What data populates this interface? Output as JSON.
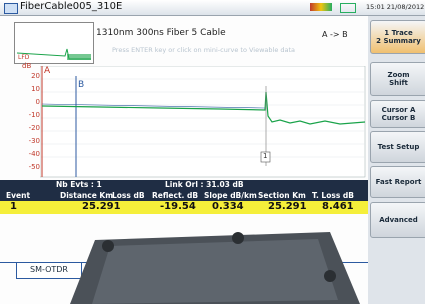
{
  "title_bar": {
    "file": "FiberCable005_310E",
    "clock": "15:01 21/08/2012"
  },
  "header": {
    "settings": "1310nm 300ns Fiber 5 Cable",
    "direction": "A -> B",
    "hint": "Press ENTER key or click on mini-curve to Viewable data"
  },
  "mini_trace": {
    "label": "LFD"
  },
  "graph": {
    "unit": "dB",
    "cursor_a": "A",
    "cursor_b": "B",
    "y_labels": [
      "20",
      "10",
      "0",
      "-10",
      "-20",
      "-30",
      "-40",
      "-50"
    ],
    "event_marker": "1"
  },
  "summary": {
    "events": "Nb Evts : 1",
    "link_orl": "Link Orl : 31.03 dB"
  },
  "table": {
    "headers": [
      "Event",
      "Distance Km",
      "Loss dB",
      "Reflect. dB",
      "Slope dB/km",
      "Section Km",
      "T. Loss dB"
    ],
    "row": {
      "event": "1",
      "distance": "25.291",
      "reflect": "-19.54",
      "slope": "0.334",
      "section": "25.291",
      "t_loss": "8.461"
    }
  },
  "menu": {
    "tabs": [
      {
        "number": "1",
        "label": "Trace"
      },
      {
        "number": "2",
        "label": "Summary"
      }
    ],
    "buttons": [
      "Zoom",
      "Shift",
      "Cursor A",
      "Cursor B",
      "Test Setup",
      "Fast Report",
      "Advanced"
    ]
  },
  "tab": "SM-OTDR"
}
